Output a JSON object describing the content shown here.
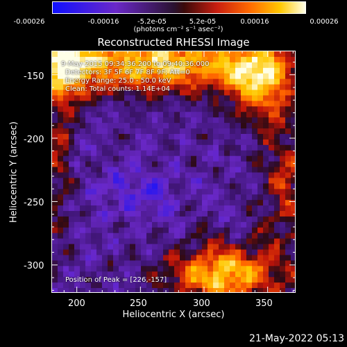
{
  "colorbar": {
    "ticks": [
      "-0.00026",
      "-0.00016",
      "-5.2e-05",
      "5.2e-05",
      "0.00016",
      "0.00026"
    ],
    "unit": "(photons cm⁻² s⁻¹ asec⁻²)"
  },
  "annotations": {
    "line1": " 9-May-2015 09:34:36.200 to 09:40:36.000",
    "line2": "Detectors: 3F 5F 6F 7F 8F 9F; Att=0",
    "line3": "Energy Range: 25.0 - 50.0 keV",
    "line4": "Clean:  Total counts: 1.14E+04",
    "peak": "Position of Peak = [226,-157]"
  },
  "footer": {
    "timestamp": "21-May-2022 05:13"
  },
  "chart_data": {
    "type": "heatmap",
    "title": "Reconstructed RHESSI Image",
    "xlabel": "Heliocentric X (arcsec)",
    "ylabel": "Heliocentric Y (arcsec)",
    "xlim": [
      180,
      372
    ],
    "ylim": [
      -322,
      -131
    ],
    "xticks": [
      200,
      250,
      300,
      350
    ],
    "yticks": [
      -150,
      -200,
      -250,
      -300
    ],
    "colorbar_range": [
      -0.00026,
      0.00026
    ],
    "peak_position": [
      226,
      -157
    ],
    "colors": {
      "low": "#1010ff",
      "mid": "#2a1230",
      "high": "#ffffe8"
    }
  }
}
